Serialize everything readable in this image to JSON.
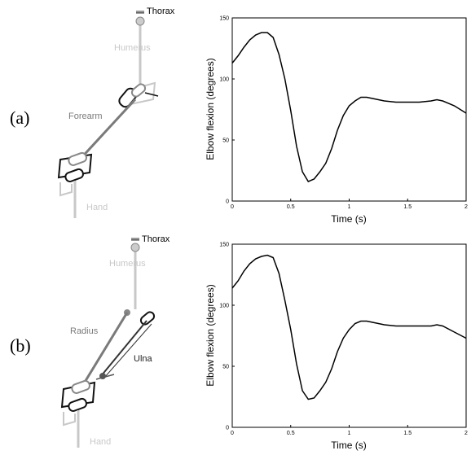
{
  "panels": [
    {
      "label": "(a)",
      "model": {
        "top_label": "Thorax",
        "upper_label": "Humerus",
        "middle_label": "Forearm",
        "bottom_label": "Hand"
      },
      "chart_data": {
        "type": "line",
        "xlabel": "Time (s)",
        "ylabel": "Elbow flexion (degrees)",
        "xlim": [
          0,
          2
        ],
        "ylim": [
          0,
          150
        ],
        "xticks": [
          "0",
          "0.5",
          "1",
          "1.5",
          "2"
        ],
        "yticks": [
          "0",
          "50",
          "100",
          "150"
        ],
        "grid": false,
        "series": [
          {
            "x": [
              0,
              0.05,
              0.1,
              0.15,
              0.2,
              0.25,
              0.3,
              0.35,
              0.4,
              0.45,
              0.5,
              0.55,
              0.6,
              0.65,
              0.7,
              0.75,
              0.8,
              0.85,
              0.9,
              0.95,
              1.0,
              1.05,
              1.1,
              1.15,
              1.2,
              1.3,
              1.4,
              1.5,
              1.6,
              1.7,
              1.75,
              1.8,
              1.9,
              2.0
            ],
            "y": [
              113,
              119,
              126,
              132,
              136,
              138,
              138,
              134,
              120,
              100,
              74,
              45,
              24,
              16,
              18,
              24,
              31,
              43,
              58,
              70,
              78,
              82,
              85,
              85,
              84,
              82,
              81,
              81,
              81,
              82,
              83,
              82,
              78,
              72
            ]
          }
        ]
      }
    },
    {
      "label": "(b)",
      "model": {
        "top_label": "Thorax",
        "upper_label": "Humerus",
        "middle_label": "Radius",
        "middle_label_2": "Ulna",
        "bottom_label": "Hand"
      },
      "chart_data": {
        "type": "line",
        "xlabel": "Time (s)",
        "ylabel": "Elbow flexion (degrees)",
        "xlim": [
          0,
          2
        ],
        "ylim": [
          0,
          150
        ],
        "xticks": [
          "0",
          "0.5",
          "1",
          "1.5",
          "2"
        ],
        "yticks": [
          "0",
          "50",
          "100",
          "150"
        ],
        "grid": false,
        "series": [
          {
            "x": [
              0,
              0.05,
              0.1,
              0.15,
              0.2,
              0.25,
              0.3,
              0.35,
              0.4,
              0.45,
              0.5,
              0.55,
              0.6,
              0.65,
              0.7,
              0.75,
              0.8,
              0.85,
              0.9,
              0.95,
              1.0,
              1.05,
              1.1,
              1.15,
              1.2,
              1.3,
              1.4,
              1.5,
              1.6,
              1.7,
              1.75,
              1.8,
              1.9,
              2.0
            ],
            "y": [
              114,
              120,
              128,
              134,
              138,
              140,
              141,
              139,
              126,
              104,
              80,
              52,
              30,
              23,
              24,
              30,
              37,
              48,
              62,
              73,
              80,
              85,
              87,
              87,
              86,
              84,
              83,
              83,
              83,
              83,
              84,
              83,
              78,
              73
            ]
          }
        ]
      }
    }
  ],
  "colors": {
    "light_gray": "#c8c8c8",
    "mid_gray": "#7a7a7a",
    "dark": "#222222",
    "curve": "#000000"
  }
}
